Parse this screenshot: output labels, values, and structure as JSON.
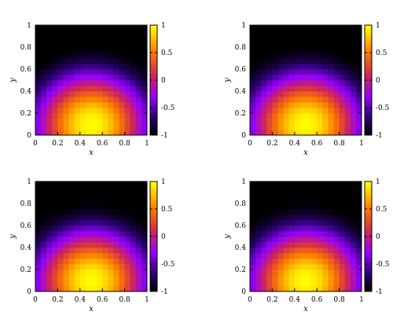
{
  "chart_data": [
    {
      "type": "heatmap",
      "xlabel": "x",
      "ylabel": "y",
      "xlim": [
        0,
        1
      ],
      "ylim": [
        0,
        1
      ],
      "xticks": [
        "0",
        "0.2",
        "0.4",
        "0.6",
        "0.8",
        "1"
      ],
      "yticks": [
        "0",
        "0.2",
        "0.4",
        "0.6",
        "0.8",
        "1"
      ],
      "grid": "20x20",
      "colorbar": {
        "range": [
          -1,
          1
        ],
        "ticks": [
          "1",
          "0.5",
          "0",
          "-0.5",
          "-1"
        ],
        "colormap": "black-purple-red-yellow"
      },
      "field": {
        "description_visual": "circular high region centered near x=0.5, y=0.1",
        "peak": 1,
        "min": -1
      }
    },
    {
      "type": "heatmap",
      "xlabel": "x",
      "ylabel": "y",
      "xlim": [
        0,
        1
      ],
      "ylim": [
        0,
        1
      ],
      "xticks": [
        "0",
        "0.2",
        "0.4",
        "0.6",
        "0.8",
        "1"
      ],
      "yticks": [
        "0",
        "0.2",
        "0.4",
        "0.6",
        "0.8",
        "1"
      ],
      "grid": "20x20",
      "colorbar": {
        "range": [
          -1,
          1
        ],
        "ticks": [
          "1",
          "0.5",
          "0",
          "-0.5",
          "-1"
        ],
        "colormap": "black-purple-red-yellow"
      },
      "field": {
        "description_visual": "circular high region centered near x=0.5, y=0.1",
        "peak": 1,
        "min": -1
      }
    },
    {
      "type": "heatmap",
      "xlabel": "x",
      "ylabel": "y",
      "xlim": [
        0,
        1
      ],
      "ylim": [
        0,
        1
      ],
      "xticks": [
        "0",
        "0.2",
        "0.4",
        "0.6",
        "0.8",
        "1"
      ],
      "yticks": [
        "0",
        "0.2",
        "0.4",
        "0.6",
        "0.8",
        "1"
      ],
      "grid": "20x20",
      "colorbar": {
        "range": [
          -1,
          1
        ],
        "ticks": [
          "1",
          "0.5",
          "0",
          "-0.5",
          "-1"
        ],
        "colormap": "black-purple-red-yellow"
      },
      "field": {
        "description_visual": "circular high region centered near x=0.5, y=0.1",
        "peak": 1,
        "min": -1
      }
    },
    {
      "type": "heatmap",
      "xlabel": "x",
      "ylabel": "y",
      "xlim": [
        0,
        1
      ],
      "ylim": [
        0,
        1
      ],
      "xticks": [
        "0",
        "0.2",
        "0.4",
        "0.6",
        "0.8",
        "1"
      ],
      "yticks": [
        "0",
        "0.2",
        "0.4",
        "0.6",
        "0.8",
        "1"
      ],
      "grid": "20x20",
      "colorbar": {
        "range": [
          -1,
          1
        ],
        "ticks": [
          "1",
          "0.5",
          "0",
          "-0.5",
          "-1"
        ],
        "colormap": "black-purple-red-yellow"
      },
      "field": {
        "description_visual": "circular high region centered near x=0.5, y=0.1",
        "peak": 1,
        "min": -1
      }
    }
  ]
}
